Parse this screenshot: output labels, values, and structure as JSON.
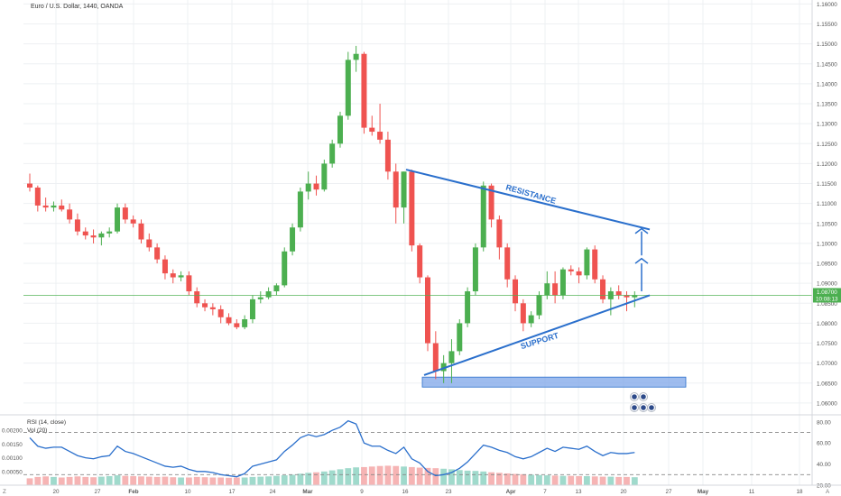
{
  "header": {
    "symbol_title": "Euro / U.S. Dollar, 1440, OANDA"
  },
  "indicator_labels": {
    "rsi": "RSI (14, close)",
    "vol": "Vol (20)"
  },
  "price_labels": {
    "last_price": "1.08700",
    "countdown": "10:08:13"
  },
  "corner_labels": {
    "left": "Z",
    "right": "A"
  },
  "colors": {
    "up": "#4caf50",
    "down": "#ef5350",
    "trendline": "#2a6fcc",
    "support_zone": "#7da6e8",
    "last_price": "#4caf50",
    "rsi_line": "#2a6fcc",
    "vol_up": "#8fd3c3",
    "vol_down": "#f4a7a7"
  },
  "chart_data": [
    {
      "type": "candlestick",
      "x_ticks": [
        "20",
        "27",
        "Feb",
        "10",
        "17",
        "24",
        "Mar",
        "9",
        "16",
        "23",
        "Apr",
        "7",
        "13",
        "20",
        "27",
        "May",
        "11",
        "18"
      ],
      "y_ticks": [
        "1.16000",
        "1.15500",
        "1.15000",
        "1.14500",
        "1.14000",
        "1.13500",
        "1.13000",
        "1.12500",
        "1.12000",
        "1.11500",
        "1.11000",
        "1.10500",
        "1.10000",
        "1.09500",
        "1.09000",
        "1.08500",
        "1.08000",
        "1.07500",
        "1.07000",
        "1.06500",
        "1.06000"
      ],
      "ylim": [
        1.0575,
        1.161
      ],
      "last_price": 1.087,
      "grid": true,
      "annotations": [
        "RESISTANCE",
        "SUPPORT"
      ],
      "candles": [
        [
          1.115,
          1.1175,
          1.113,
          1.114
        ],
        [
          1.114,
          1.1145,
          1.108,
          1.1095
        ],
        [
          1.1095,
          1.1115,
          1.108,
          1.109
        ],
        [
          1.109,
          1.1105,
          1.108,
          1.1095
        ],
        [
          1.1095,
          1.111,
          1.108,
          1.1085
        ],
        [
          1.1085,
          1.11,
          1.105,
          1.106
        ],
        [
          1.106,
          1.1075,
          1.102,
          1.103
        ],
        [
          1.103,
          1.104,
          1.101,
          1.102
        ],
        [
          1.102,
          1.1035,
          1.1,
          1.1015
        ],
        [
          1.1015,
          1.103,
          1.0995,
          1.1025
        ],
        [
          1.1025,
          1.104,
          1.1015,
          1.103
        ],
        [
          1.103,
          1.11,
          1.1025,
          1.109
        ],
        [
          1.109,
          1.11,
          1.105,
          1.106
        ],
        [
          1.106,
          1.107,
          1.104,
          1.105
        ],
        [
          1.105,
          1.106,
          1.1,
          1.101
        ],
        [
          1.101,
          1.1025,
          1.098,
          1.099
        ],
        [
          1.099,
          1.1,
          1.095,
          1.096
        ],
        [
          1.096,
          1.097,
          1.091,
          1.0925
        ],
        [
          1.0925,
          1.0935,
          1.09,
          1.0915
        ],
        [
          1.0915,
          1.093,
          1.0905,
          1.092
        ],
        [
          1.092,
          1.093,
          1.087,
          1.088
        ],
        [
          1.088,
          1.089,
          1.084,
          1.085
        ],
        [
          1.085,
          1.086,
          1.083,
          1.084
        ],
        [
          1.084,
          1.085,
          1.082,
          1.0835
        ],
        [
          1.0835,
          1.0845,
          1.08,
          1.0815
        ],
        [
          1.0815,
          1.0825,
          1.0795,
          1.08
        ],
        [
          1.08,
          1.081,
          1.0785,
          1.079
        ],
        [
          1.079,
          1.082,
          1.0785,
          1.081
        ],
        [
          1.081,
          1.087,
          1.08,
          1.086
        ],
        [
          1.086,
          1.088,
          1.085,
          1.0865
        ],
        [
          1.0865,
          1.089,
          1.086,
          1.088
        ],
        [
          1.088,
          1.09,
          1.087,
          1.0895
        ],
        [
          1.0895,
          1.099,
          1.089,
          1.098
        ],
        [
          1.098,
          1.105,
          1.097,
          1.104
        ],
        [
          1.104,
          1.114,
          1.103,
          1.113
        ],
        [
          1.113,
          1.118,
          1.111,
          1.115
        ],
        [
          1.115,
          1.117,
          1.112,
          1.1135
        ],
        [
          1.1135,
          1.121,
          1.113,
          1.12
        ],
        [
          1.12,
          1.126,
          1.119,
          1.125
        ],
        [
          1.125,
          1.133,
          1.124,
          1.132
        ],
        [
          1.132,
          1.148,
          1.131,
          1.146
        ],
        [
          1.146,
          1.1495,
          1.143,
          1.1475
        ],
        [
          1.1475,
          1.148,
          1.1275,
          1.129
        ],
        [
          1.129,
          1.132,
          1.127,
          1.128
        ],
        [
          1.128,
          1.135,
          1.125,
          1.126
        ],
        [
          1.126,
          1.128,
          1.116,
          1.118
        ],
        [
          1.118,
          1.12,
          1.105,
          1.109
        ],
        [
          1.109,
          1.118,
          1.105,
          1.118
        ],
        [
          1.118,
          1.1185,
          1.098,
          1.0995
        ],
        [
          1.0995,
          1.1,
          1.09,
          1.0915
        ],
        [
          1.0915,
          1.092,
          1.073,
          1.075
        ],
        [
          1.075,
          1.078,
          1.066,
          1.068
        ],
        [
          1.068,
          1.072,
          1.065,
          1.07
        ],
        [
          1.07,
          1.076,
          1.065,
          1.073
        ],
        [
          1.073,
          1.081,
          1.072,
          1.08
        ],
        [
          1.08,
          1.089,
          1.079,
          1.088
        ],
        [
          1.088,
          1.1,
          1.087,
          1.099
        ],
        [
          1.099,
          1.1155,
          1.098,
          1.1145
        ],
        [
          1.1145,
          1.115,
          1.104,
          1.106
        ],
        [
          1.106,
          1.107,
          1.096,
          1.099
        ],
        [
          1.099,
          1.1,
          1.089,
          1.091
        ],
        [
          1.091,
          1.092,
          1.083,
          1.085
        ],
        [
          1.085,
          1.086,
          1.078,
          1.08
        ],
        [
          1.08,
          1.083,
          1.079,
          1.082
        ],
        [
          1.082,
          1.088,
          1.081,
          1.087
        ],
        [
          1.087,
          1.093,
          1.086,
          1.09
        ],
        [
          1.09,
          1.093,
          1.085,
          1.087
        ],
        [
          1.087,
          1.094,
          1.086,
          1.0935
        ],
        [
          1.0935,
          1.0945,
          1.092,
          1.093
        ],
        [
          1.093,
          1.094,
          1.09,
          1.092
        ],
        [
          1.092,
          1.099,
          1.091,
          1.0985
        ],
        [
          1.0985,
          1.0995,
          1.09,
          1.091
        ],
        [
          1.091,
          1.092,
          1.085,
          1.086
        ],
        [
          1.086,
          1.089,
          1.082,
          1.088
        ],
        [
          1.088,
          1.0895,
          1.086,
          1.087
        ],
        [
          1.087,
          1.088,
          1.083,
          1.0865
        ],
        [
          1.0865,
          1.088,
          1.084,
          1.087
        ]
      ]
    },
    {
      "type": "line",
      "title": "RSI (14, close)",
      "y_ticks": [
        "80.00",
        "60.00",
        "40.00",
        "20.00"
      ],
      "ylim": [
        20,
        85
      ],
      "guides": [
        70,
        30
      ],
      "values": [
        65,
        57,
        55,
        56,
        56,
        52,
        48,
        46,
        45,
        47,
        48,
        57,
        52,
        50,
        47,
        44,
        41,
        38,
        37,
        38,
        35,
        33,
        33,
        32,
        30,
        29,
        28,
        31,
        38,
        40,
        42,
        44,
        52,
        58,
        65,
        68,
        66,
        68,
        72,
        75,
        81,
        78,
        60,
        57,
        57,
        53,
        50,
        56,
        45,
        41,
        33,
        29,
        30,
        32,
        36,
        42,
        50,
        58,
        56,
        53,
        51,
        47,
        45,
        47,
        51,
        55,
        52,
        56,
        55,
        54,
        57,
        52,
        48,
        51,
        50,
        50,
        51
      ]
    },
    {
      "type": "bar",
      "title": "Vol (20)",
      "y_ticks": [
        "0.00200",
        "0.00150",
        "0.00100",
        "0.00050"
      ],
      "ylim": [
        0,
        0.0025
      ],
      "values": [
        0.00025,
        0.0003,
        0.00032,
        0.0003,
        0.00028,
        0.0003,
        0.00032,
        0.0003,
        0.00029,
        0.00031,
        0.00033,
        0.00036,
        0.00034,
        0.00033,
        0.00032,
        0.00031,
        0.0003,
        0.00031,
        0.00029,
        0.00028,
        0.00028,
        0.0003,
        0.00029,
        0.00028,
        0.00028,
        0.00027,
        0.00028,
        0.00028,
        0.0003,
        0.00031,
        0.00032,
        0.00034,
        0.00036,
        0.00038,
        0.00042,
        0.00045,
        0.00047,
        0.0005,
        0.00054,
        0.00058,
        0.00062,
        0.00065,
        0.00066,
        0.00068,
        0.0007,
        0.00071,
        0.0007,
        0.00068,
        0.00066,
        0.00064,
        0.00063,
        0.00062,
        0.0006,
        0.00058,
        0.00055,
        0.00053,
        0.00052,
        0.0005,
        0.00047,
        0.00045,
        0.00043,
        0.00041,
        0.0004,
        0.00038,
        0.00037,
        0.00036,
        0.00035,
        0.00034,
        0.00034,
        0.00033,
        0.00033,
        0.00032,
        0.00031,
        0.00031,
        0.0003,
        0.0003,
        0.00029
      ]
    }
  ]
}
